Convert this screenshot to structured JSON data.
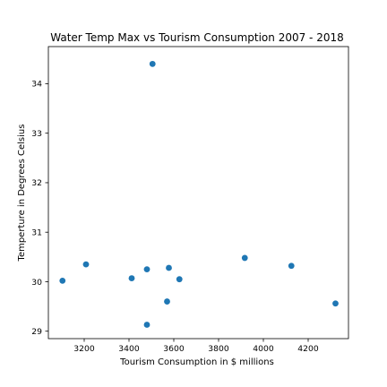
{
  "chart_data": {
    "type": "scatter",
    "title": "Water Temp Max vs Tourism Consumption 2007 - 2018",
    "xlabel": "Tourism Consumption in $ millions",
    "ylabel": "Temperture in Degrees Celsius",
    "xlim": [
      3040,
      4380
    ],
    "ylim": [
      28.85,
      34.75
    ],
    "x_ticks": [
      3200,
      3400,
      3600,
      3800,
      4000,
      4200
    ],
    "y_ticks": [
      29,
      30,
      31,
      32,
      33,
      34
    ],
    "grid": false,
    "marker_color": "#1f77b4",
    "points": [
      {
        "x": 3103,
        "y": 30.02
      },
      {
        "x": 3208,
        "y": 30.35
      },
      {
        "x": 3412,
        "y": 30.07
      },
      {
        "x": 3480,
        "y": 30.25
      },
      {
        "x": 3480,
        "y": 29.13
      },
      {
        "x": 3505,
        "y": 34.4
      },
      {
        "x": 3570,
        "y": 29.6
      },
      {
        "x": 3578,
        "y": 30.28
      },
      {
        "x": 3625,
        "y": 30.05
      },
      {
        "x": 3917,
        "y": 30.48
      },
      {
        "x": 4125,
        "y": 30.32
      },
      {
        "x": 4322,
        "y": 29.56
      }
    ]
  }
}
